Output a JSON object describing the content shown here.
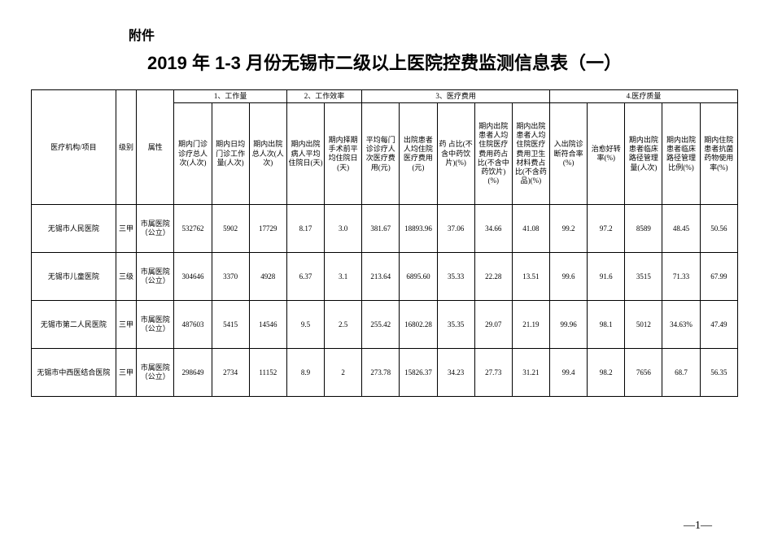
{
  "attachment_label": "附件",
  "title": "2019 年 1-3 月份无锡市二级以上医院控费监测信息表（一）",
  "group_headers": {
    "g1": "1、工作量",
    "g2": "2、工作效率",
    "g3": "3、医疗费用",
    "g4": "4.医疗质量"
  },
  "columns": {
    "c0": "医疗机构/项目",
    "c1": "级别",
    "c2": "属性",
    "c3": "期内门诊诊疗总人次(人次)",
    "c4": "期内日均门诊工作量(人次)",
    "c5": "期内出院总人次(人次)",
    "c6": "期内出院病人平均住院日(天)",
    "c7": "期内择期手术前平均住院日(天)",
    "c8": "平均每门诊诊疗人次医疗费用(元)",
    "c9": "出院患者人均住院医疗费用(元)",
    "c10": "药 占比(不含中药饮片)(%)",
    "c11": "期内出院患者人均住院医疗费用药占比(不含中药饮片)(%)",
    "c12": "期内出院患者人均住院医疗费用卫生材料费占比(不含药品)(%)",
    "c13": "入出院诊断符合率(%)",
    "c14": "治愈好转率(%)",
    "c15": "期内出院患者临床路径管理量(人次)",
    "c16": "期内出院患者临床路径管理比例(%)",
    "c17": "期内住院患者抗菌药物使用率(%)"
  },
  "rows": [
    {
      "name": "无锡市人民医院",
      "level": "三甲",
      "attr": "市属医院（公立）",
      "v3": "532762",
      "v4": "5902",
      "v5": "17729",
      "v6": "8.17",
      "v7": "3.0",
      "v8": "381.67",
      "v9": "18893.96",
      "v10": "37.06",
      "v11": "34.66",
      "v12": "41.08",
      "v13": "99.2",
      "v14": "97.2",
      "v15": "8589",
      "v16": "48.45",
      "v17": "50.56"
    },
    {
      "name": "无锡市儿童医院",
      "level": "三级",
      "attr": "市属医院（公立）",
      "v3": "304646",
      "v4": "3370",
      "v5": "4928",
      "v6": "6.37",
      "v7": "3.1",
      "v8": "213.64",
      "v9": "6895.60",
      "v10": "35.33",
      "v11": "22.28",
      "v12": "13.51",
      "v13": "99.6",
      "v14": "91.6",
      "v15": "3515",
      "v16": "71.33",
      "v17": "67.99"
    },
    {
      "name": "无锡市第二人民医院",
      "level": "三甲",
      "attr": "市属医院（公立）",
      "v3": "487603",
      "v4": "5415",
      "v5": "14546",
      "v6": "9.5",
      "v7": "2.5",
      "v8": "255.42",
      "v9": "16802.28",
      "v10": "35.35",
      "v11": "29.07",
      "v12": "21.19",
      "v13": "99.96",
      "v14": "98.1",
      "v15": "5012",
      "v16": "34.63%",
      "v17": "47.49"
    },
    {
      "name": "无锡市中西医结合医院",
      "level": "三甲",
      "attr": "市属医院（公立）",
      "v3": "298649",
      "v4": "2734",
      "v5": "11152",
      "v6": "8.9",
      "v7": "2",
      "v8": "273.78",
      "v9": "15826.37",
      "v10": "34.23",
      "v11": "27.73",
      "v12": "31.21",
      "v13": "99.4",
      "v14": "98.2",
      "v15": "7656",
      "v16": "68.7",
      "v17": "56.35"
    }
  ],
  "page_number": "—1—"
}
